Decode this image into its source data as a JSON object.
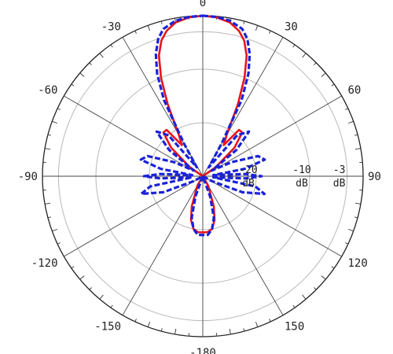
{
  "chart_data": {
    "type": "polar-line",
    "angle_tick_labels": [
      "0",
      "30",
      "60",
      "90",
      "120",
      "150",
      "-180",
      "-150",
      "-120",
      "-90",
      "-60",
      "-30"
    ],
    "angle_ticks_deg": [
      0,
      30,
      60,
      90,
      120,
      150,
      180,
      210,
      240,
      270,
      300,
      330
    ],
    "radial_range_db": [
      -30,
      0
    ],
    "radial_rings_db": [
      -3,
      -10,
      -20,
      -30
    ],
    "ring_labels": [
      {
        "value": "-3",
        "unit": "dB",
        "db": -3
      },
      {
        "value": "-10",
        "unit": "dB",
        "db": -10
      },
      {
        "value": "-20",
        "unit": "dB",
        "db": -20
      }
    ],
    "grid": true,
    "series": [
      {
        "color": "#e8141b",
        "dash": "solid",
        "points": [
          {
            "theta": 0,
            "db": 0
          },
          {
            "theta": 5,
            "db": -0.2
          },
          {
            "theta": 10,
            "db": -0.8
          },
          {
            "theta": 14,
            "db": -2
          },
          {
            "theta": 17,
            "db": -3.5
          },
          {
            "theta": 20,
            "db": -6
          },
          {
            "theta": 23,
            "db": -10
          },
          {
            "theta": 26,
            "db": -15
          },
          {
            "theta": 30,
            "db": -21
          },
          {
            "theta": 34,
            "db": -23
          },
          {
            "theta": 38,
            "db": -19
          },
          {
            "theta": 42,
            "db": -19
          },
          {
            "theta": 48,
            "db": -22
          },
          {
            "theta": 55,
            "db": -27
          },
          {
            "theta": 60,
            "db": -30
          },
          {
            "theta": 80,
            "db": -30
          },
          {
            "theta": 100,
            "db": -30
          },
          {
            "theta": 120,
            "db": -30
          },
          {
            "theta": 150,
            "db": -28
          },
          {
            "theta": 160,
            "db": -24
          },
          {
            "theta": 165,
            "db": -21.5
          },
          {
            "theta": 170,
            "db": -20
          },
          {
            "theta": 175,
            "db": -19.5
          },
          {
            "theta": 180,
            "db": -19.5
          },
          {
            "theta": 185,
            "db": -19.5
          },
          {
            "theta": 190,
            "db": -20
          },
          {
            "theta": 195,
            "db": -21.5
          },
          {
            "theta": 200,
            "db": -24
          },
          {
            "theta": 210,
            "db": -28
          },
          {
            "theta": 240,
            "db": -30
          },
          {
            "theta": 280,
            "db": -30
          },
          {
            "theta": 300,
            "db": -30
          },
          {
            "theta": 305,
            "db": -27
          },
          {
            "theta": 312,
            "db": -22
          },
          {
            "theta": 318,
            "db": -19
          },
          {
            "theta": 322,
            "db": -19
          },
          {
            "theta": 326,
            "db": -23
          },
          {
            "theta": 330,
            "db": -21
          },
          {
            "theta": 334,
            "db": -15
          },
          {
            "theta": 337,
            "db": -10
          },
          {
            "theta": 340,
            "db": -6
          },
          {
            "theta": 343,
            "db": -3.5
          },
          {
            "theta": 346,
            "db": -2
          },
          {
            "theta": 350,
            "db": -0.8
          },
          {
            "theta": 355,
            "db": -0.2
          },
          {
            "theta": 360,
            "db": 0
          }
        ]
      },
      {
        "color": "#1a22d8",
        "dash": "dashed",
        "points": [
          {
            "theta": 0,
            "db": 0
          },
          {
            "theta": 5,
            "db": -0.1
          },
          {
            "theta": 10,
            "db": -0.5
          },
          {
            "theta": 15,
            "db": -1.5
          },
          {
            "theta": 18,
            "db": -3
          },
          {
            "theta": 21,
            "db": -5.5
          },
          {
            "theta": 24,
            "db": -9
          },
          {
            "theta": 27,
            "db": -14
          },
          {
            "theta": 30,
            "db": -23
          },
          {
            "theta": 34,
            "db": -28
          },
          {
            "theta": 40,
            "db": -20
          },
          {
            "theta": 46,
            "db": -18
          },
          {
            "theta": 52,
            "db": -22
          },
          {
            "theta": 58,
            "db": -28
          },
          {
            "theta": 64,
            "db": -24
          },
          {
            "theta": 70,
            "db": -19
          },
          {
            "theta": 75,
            "db": -18
          },
          {
            "theta": 80,
            "db": -22
          },
          {
            "theta": 84,
            "db": -28
          },
          {
            "theta": 87,
            "db": -22
          },
          {
            "theta": 90,
            "db": -19
          },
          {
            "theta": 93,
            "db": -22
          },
          {
            "theta": 96,
            "db": -28
          },
          {
            "theta": 101,
            "db": -20
          },
          {
            "theta": 106,
            "db": -18
          },
          {
            "theta": 112,
            "db": -22
          },
          {
            "theta": 118,
            "db": -28
          },
          {
            "theta": 130,
            "db": -30
          },
          {
            "theta": 150,
            "db": -30
          },
          {
            "theta": 160,
            "db": -26
          },
          {
            "theta": 165,
            "db": -22
          },
          {
            "theta": 170,
            "db": -20
          },
          {
            "theta": 175,
            "db": -19
          },
          {
            "theta": 180,
            "db": -19
          },
          {
            "theta": 185,
            "db": -19
          },
          {
            "theta": 190,
            "db": -20
          },
          {
            "theta": 195,
            "db": -22
          },
          {
            "theta": 200,
            "db": -26
          },
          {
            "theta": 210,
            "db": -30
          },
          {
            "theta": 230,
            "db": -30
          },
          {
            "theta": 242,
            "db": -28
          },
          {
            "theta": 248,
            "db": -22
          },
          {
            "theta": 254,
            "db": -18
          },
          {
            "theta": 259,
            "db": -20
          },
          {
            "theta": 264,
            "db": -28
          },
          {
            "theta": 267,
            "db": -22
          },
          {
            "theta": 270,
            "db": -19
          },
          {
            "theta": 273,
            "db": -22
          },
          {
            "theta": 276,
            "db": -28
          },
          {
            "theta": 280,
            "db": -22
          },
          {
            "theta": 285,
            "db": -18
          },
          {
            "theta": 290,
            "db": -19
          },
          {
            "theta": 296,
            "db": -24
          },
          {
            "theta": 302,
            "db": -28
          },
          {
            "theta": 308,
            "db": -22
          },
          {
            "theta": 314,
            "db": -18
          },
          {
            "theta": 320,
            "db": -20
          },
          {
            "theta": 326,
            "db": -28
          },
          {
            "theta": 330,
            "db": -23
          },
          {
            "theta": 333,
            "db": -14
          },
          {
            "theta": 336,
            "db": -9
          },
          {
            "theta": 339,
            "db": -5.5
          },
          {
            "theta": 342,
            "db": -3
          },
          {
            "theta": 345,
            "db": -1.5
          },
          {
            "theta": 350,
            "db": -0.5
          },
          {
            "theta": 355,
            "db": -0.1
          },
          {
            "theta": 360,
            "db": 0
          }
        ]
      }
    ]
  }
}
